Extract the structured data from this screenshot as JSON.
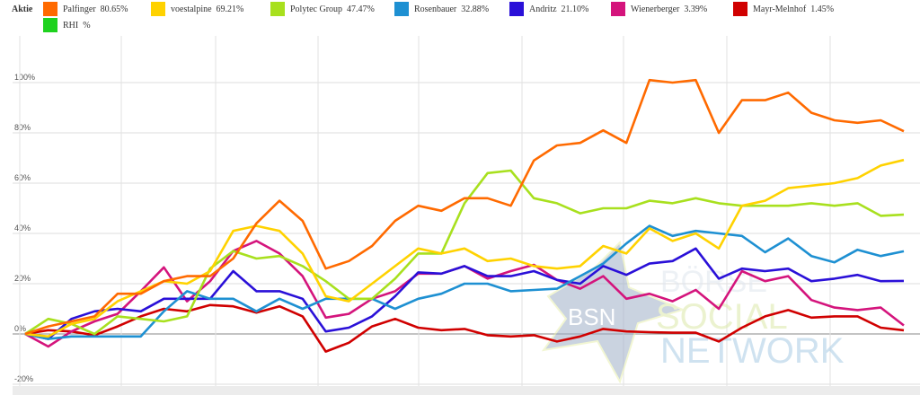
{
  "legend": {
    "title": "Aktie",
    "items": [
      {
        "name": "Palfinger",
        "value": "80.65%",
        "color": "#ff6a00"
      },
      {
        "name": "voestalpine",
        "value": "69.21%",
        "color": "#ffd200"
      },
      {
        "name": "Polytec Group",
        "value": "47.47%",
        "color": "#a8e01e"
      },
      {
        "name": "Rosenbauer",
        "value": "32.88%",
        "color": "#1e90d2"
      },
      {
        "name": "Andritz",
        "value": "21.10%",
        "color": "#2a10d8"
      },
      {
        "name": "Wienerberger",
        "value": "3.39%",
        "color": "#d4147c"
      },
      {
        "name": "Mayr-Melnhof",
        "value": "1.45%",
        "color": "#d00000"
      },
      {
        "name": "RHI",
        "value": "%",
        "color": "#1ed21e"
      }
    ]
  },
  "watermark": {
    "logo": "BSN",
    "line1": "BÖRSE",
    "line2": "SOCIAL",
    "line3": "NETWORK"
  },
  "chart_data": {
    "type": "line",
    "title": "",
    "xlabel": "",
    "ylabel": "",
    "ylim": [
      -20,
      110
    ],
    "yticks": [
      "-20%",
      "0%",
      "20%",
      "40%",
      "60%",
      "80%",
      "100%"
    ],
    "ytick_values": [
      -20,
      0,
      20,
      40,
      60,
      80,
      100
    ],
    "grid": true,
    "legend_position": "top",
    "series": [
      {
        "name": "Palfinger",
        "color": "#ff6a00",
        "values": [
          0,
          3,
          5,
          7,
          16,
          16,
          21,
          23,
          23,
          30,
          44,
          53,
          45,
          26,
          29,
          35,
          45,
          51,
          49,
          54,
          54,
          51,
          69,
          75,
          76,
          81,
          76,
          101,
          100,
          101,
          80,
          93,
          93,
          96,
          88,
          85,
          84,
          85,
          80.65
        ]
      },
      {
        "name": "voestalpine",
        "color": "#ffd200",
        "values": [
          0,
          -1,
          4,
          6,
          13,
          17,
          21,
          20,
          25,
          41,
          43,
          41,
          32,
          15,
          13,
          20,
          27,
          34,
          32,
          34,
          29,
          30,
          27,
          26,
          27,
          35,
          32,
          42,
          37,
          40,
          34,
          51,
          53,
          58,
          59,
          60,
          62,
          67,
          69.21
        ]
      },
      {
        "name": "Polytec Group",
        "color": "#a8e01e",
        "values": [
          0,
          6,
          4,
          0,
          7,
          6,
          5,
          7,
          26,
          33,
          30,
          31,
          27,
          21,
          14,
          14,
          22,
          32,
          32,
          52,
          64,
          65,
          54,
          52,
          48,
          50,
          50,
          53,
          52,
          54,
          52,
          51,
          51,
          51,
          52,
          51,
          52,
          47,
          47.47
        ]
      },
      {
        "name": "Rosenbauer",
        "color": "#1e90d2",
        "values": [
          0,
          -2,
          -1,
          -1,
          -1,
          -1,
          9,
          17,
          14,
          14,
          9,
          14,
          10,
          14,
          14,
          14,
          10,
          14,
          16,
          20,
          20,
          17,
          17.5,
          18,
          23,
          28,
          36,
          43,
          39,
          41,
          40,
          39,
          32.5,
          38,
          31,
          28.5,
          33.5,
          31,
          32.88
        ]
      },
      {
        "name": "Andritz",
        "color": "#2a10d8",
        "values": [
          0,
          -2,
          6,
          9,
          10,
          9,
          14,
          14,
          14,
          25,
          17,
          17,
          14,
          1,
          2.5,
          7,
          15,
          24.5,
          24,
          27,
          23,
          23,
          25,
          21.5,
          20,
          27,
          23.5,
          28,
          29,
          34,
          22,
          26,
          25,
          26,
          21,
          22,
          23.5,
          21,
          21.1
        ]
      },
      {
        "name": "Wienerberger",
        "color": "#d4147c",
        "values": [
          0,
          -5,
          1,
          5,
          8,
          17,
          26.5,
          13,
          21,
          33,
          37,
          32,
          23,
          6.5,
          8,
          14,
          17,
          24,
          24,
          27,
          22,
          25,
          27.5,
          21.5,
          18,
          23,
          14,
          16,
          13,
          17.5,
          10,
          25,
          21,
          23,
          13.5,
          10.5,
          9.5,
          10.5,
          3.39
        ]
      },
      {
        "name": "Mayr-Melnhof",
        "color": "#d00000",
        "values": [
          0,
          1.5,
          1,
          -0.5,
          3,
          7,
          10,
          9,
          11.5,
          11,
          8.5,
          11,
          7,
          -7,
          -3.5,
          3,
          6,
          2.5,
          1.5,
          2,
          -0.5,
          -1,
          -0.5,
          -3,
          -1,
          2,
          1,
          0.7,
          0.5,
          0.5,
          -3,
          2.5,
          7,
          9.5,
          6.5,
          7,
          7,
          2.5,
          1.45
        ]
      },
      {
        "name": "RHI",
        "color": "#1ed21e",
        "values": []
      }
    ]
  }
}
